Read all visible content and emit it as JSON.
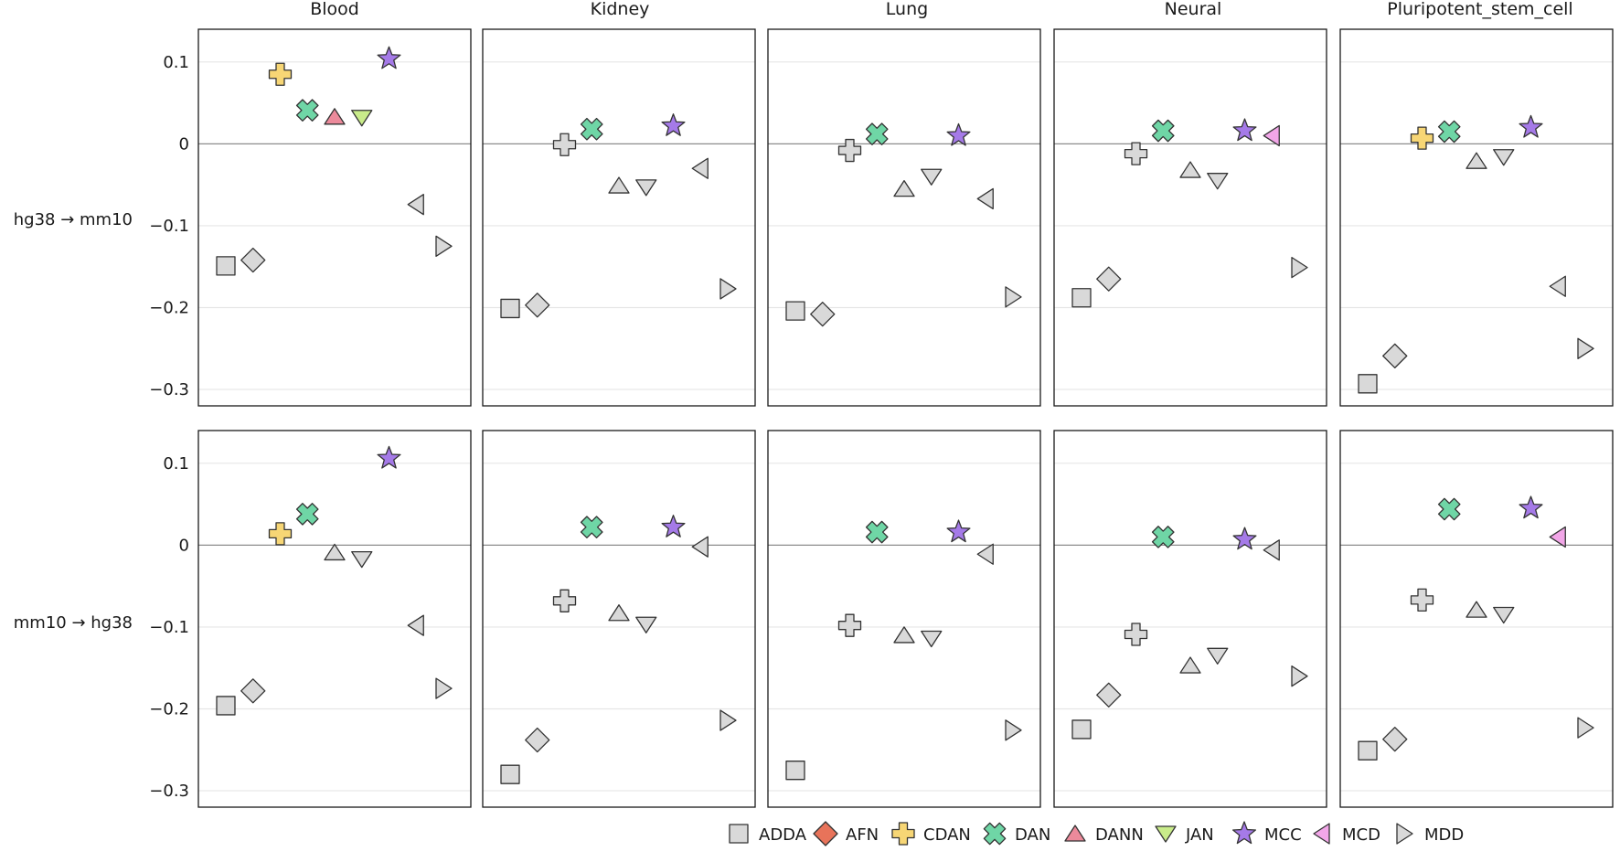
{
  "chart_data": {
    "type": "scatter",
    "title": "",
    "columns": [
      "Blood",
      "Kidney",
      "Lung",
      "Neural",
      "Pluripotent_stem_cell"
    ],
    "rows": [
      "hg38 → mm10",
      "mm10 → hg38"
    ],
    "methods": [
      "ADDA",
      "AFN",
      "CDAN",
      "DAN",
      "DANN",
      "JAN",
      "MCC",
      "MCD",
      "MDD"
    ],
    "ylim": [
      -0.32,
      0.14
    ],
    "yticks": [
      0.1,
      0,
      -0.1,
      -0.2,
      -0.3
    ],
    "ytick_labels": [
      "0.1",
      "0",
      "−0.1",
      "−0.2",
      "−0.3"
    ],
    "grid": true,
    "legend_position": "bottom-right",
    "colors": {
      "ADDA": "#d9d9d9",
      "AFN": "#e8735a",
      "CDAN": "#f7d675",
      "DAN": "#6fd6a6",
      "DANN": "#ec8a9b",
      "JAN": "#c9ec8a",
      "MCC": "#a57ae8",
      "MCD": "#f2a6e8",
      "MDD": "#d9d9d9",
      "inactive": "#d9d9d9"
    },
    "shapes": {
      "ADDA": "square",
      "AFN": "diamond",
      "CDAN": "cross",
      "DAN": "x",
      "DANN": "triangle-up",
      "JAN": "triangle-down",
      "MCC": "star",
      "MCD": "triangle-left",
      "MDD": "triangle-right"
    },
    "panels": [
      {
        "row": 0,
        "col": 0,
        "points": [
          {
            "method": "ADDA",
            "y": -0.149,
            "active": false
          },
          {
            "method": "AFN",
            "y": -0.142,
            "active": false
          },
          {
            "method": "CDAN",
            "y": 0.085,
            "active": true
          },
          {
            "method": "DAN",
            "y": 0.041,
            "active": true
          },
          {
            "method": "DANN",
            "y": 0.033,
            "active": true
          },
          {
            "method": "JAN",
            "y": 0.032,
            "active": true
          },
          {
            "method": "MCC",
            "y": 0.104,
            "active": true
          },
          {
            "method": "MCD",
            "y": -0.074,
            "active": false
          },
          {
            "method": "MDD",
            "y": -0.125,
            "active": false
          }
        ]
      },
      {
        "row": 0,
        "col": 1,
        "points": [
          {
            "method": "ADDA",
            "y": -0.201,
            "active": false
          },
          {
            "method": "AFN",
            "y": -0.197,
            "active": false
          },
          {
            "method": "CDAN",
            "y": -0.001,
            "active": false
          },
          {
            "method": "DAN",
            "y": 0.018,
            "active": true
          },
          {
            "method": "DANN",
            "y": -0.051,
            "active": false
          },
          {
            "method": "JAN",
            "y": -0.053,
            "active": false
          },
          {
            "method": "MCC",
            "y": 0.022,
            "active": true
          },
          {
            "method": "MCD",
            "y": -0.03,
            "active": false
          },
          {
            "method": "MDD",
            "y": -0.177,
            "active": false
          }
        ]
      },
      {
        "row": 0,
        "col": 2,
        "points": [
          {
            "method": "ADDA",
            "y": -0.204,
            "active": false
          },
          {
            "method": "AFN",
            "y": -0.208,
            "active": false
          },
          {
            "method": "CDAN",
            "y": -0.008,
            "active": false
          },
          {
            "method": "DAN",
            "y": 0.012,
            "active": true
          },
          {
            "method": "DANN",
            "y": -0.055,
            "active": false
          },
          {
            "method": "JAN",
            "y": -0.04,
            "active": false
          },
          {
            "method": "MCC",
            "y": 0.01,
            "active": true
          },
          {
            "method": "MCD",
            "y": -0.067,
            "active": false
          },
          {
            "method": "MDD",
            "y": -0.187,
            "active": false
          }
        ]
      },
      {
        "row": 0,
        "col": 3,
        "points": [
          {
            "method": "ADDA",
            "y": -0.188,
            "active": false
          },
          {
            "method": "AFN",
            "y": -0.165,
            "active": false
          },
          {
            "method": "CDAN",
            "y": -0.012,
            "active": false
          },
          {
            "method": "DAN",
            "y": 0.016,
            "active": true
          },
          {
            "method": "DANN",
            "y": -0.032,
            "active": false
          },
          {
            "method": "JAN",
            "y": -0.045,
            "active": false
          },
          {
            "method": "MCC",
            "y": 0.016,
            "active": true
          },
          {
            "method": "MCD",
            "y": 0.01,
            "active": true
          },
          {
            "method": "MDD",
            "y": -0.151,
            "active": false
          }
        ]
      },
      {
        "row": 0,
        "col": 4,
        "points": [
          {
            "method": "ADDA",
            "y": -0.293,
            "active": false
          },
          {
            "method": "AFN",
            "y": -0.259,
            "active": false
          },
          {
            "method": "CDAN",
            "y": 0.007,
            "active": true
          },
          {
            "method": "DAN",
            "y": 0.015,
            "active": true
          },
          {
            "method": "DANN",
            "y": -0.021,
            "active": false
          },
          {
            "method": "JAN",
            "y": -0.016,
            "active": false
          },
          {
            "method": "MCC",
            "y": 0.02,
            "active": true
          },
          {
            "method": "MCD",
            "y": -0.174,
            "active": false
          },
          {
            "method": "MDD",
            "y": -0.25,
            "active": false
          }
        ]
      },
      {
        "row": 1,
        "col": 0,
        "points": [
          {
            "method": "ADDA",
            "y": -0.196,
            "active": false
          },
          {
            "method": "AFN",
            "y": -0.178,
            "active": false
          },
          {
            "method": "CDAN",
            "y": 0.014,
            "active": true
          },
          {
            "method": "DAN",
            "y": 0.038,
            "active": true
          },
          {
            "method": "DANN",
            "y": -0.009,
            "active": false
          },
          {
            "method": "JAN",
            "y": -0.017,
            "active": false
          },
          {
            "method": "MCC",
            "y": 0.106,
            "active": true
          },
          {
            "method": "MCD",
            "y": -0.098,
            "active": false
          },
          {
            "method": "MDD",
            "y": -0.175,
            "active": false
          }
        ]
      },
      {
        "row": 1,
        "col": 1,
        "points": [
          {
            "method": "ADDA",
            "y": -0.28,
            "active": false
          },
          {
            "method": "AFN",
            "y": -0.238,
            "active": false
          },
          {
            "method": "CDAN",
            "y": -0.068,
            "active": false
          },
          {
            "method": "DAN",
            "y": 0.022,
            "active": true
          },
          {
            "method": "DANN",
            "y": -0.083,
            "active": false
          },
          {
            "method": "JAN",
            "y": -0.097,
            "active": false
          },
          {
            "method": "MCC",
            "y": 0.022,
            "active": true
          },
          {
            "method": "MCD",
            "y": -0.002,
            "active": false
          },
          {
            "method": "MDD",
            "y": -0.214,
            "active": false
          }
        ]
      },
      {
        "row": 1,
        "col": 2,
        "points": [
          {
            "method": "ADDA",
            "y": -0.275,
            "active": false
          },
          {
            "method": "AFN",
            "y": null,
            "active": false
          },
          {
            "method": "CDAN",
            "y": -0.098,
            "active": false
          },
          {
            "method": "DAN",
            "y": 0.016,
            "active": true
          },
          {
            "method": "DANN",
            "y": -0.11,
            "active": false
          },
          {
            "method": "JAN",
            "y": -0.114,
            "active": false
          },
          {
            "method": "MCC",
            "y": 0.016,
            "active": true
          },
          {
            "method": "MCD",
            "y": -0.011,
            "active": false
          },
          {
            "method": "MDD",
            "y": -0.226,
            "active": false
          }
        ]
      },
      {
        "row": 1,
        "col": 3,
        "points": [
          {
            "method": "ADDA",
            "y": -0.225,
            "active": false
          },
          {
            "method": "AFN",
            "y": -0.183,
            "active": false
          },
          {
            "method": "CDAN",
            "y": -0.109,
            "active": false
          },
          {
            "method": "DAN",
            "y": 0.01,
            "active": true
          },
          {
            "method": "DANN",
            "y": -0.147,
            "active": false
          },
          {
            "method": "JAN",
            "y": -0.135,
            "active": false
          },
          {
            "method": "MCC",
            "y": 0.007,
            "active": true
          },
          {
            "method": "MCD",
            "y": -0.006,
            "active": false
          },
          {
            "method": "MDD",
            "y": -0.16,
            "active": false
          }
        ]
      },
      {
        "row": 1,
        "col": 4,
        "points": [
          {
            "method": "ADDA",
            "y": -0.251,
            "active": false
          },
          {
            "method": "AFN",
            "y": -0.237,
            "active": false
          },
          {
            "method": "CDAN",
            "y": -0.067,
            "active": false
          },
          {
            "method": "DAN",
            "y": 0.044,
            "active": true
          },
          {
            "method": "DANN",
            "y": -0.079,
            "active": false
          },
          {
            "method": "JAN",
            "y": -0.085,
            "active": false
          },
          {
            "method": "MCC",
            "y": 0.045,
            "active": true
          },
          {
            "method": "MCD",
            "y": 0.01,
            "active": true
          },
          {
            "method": "MDD",
            "y": -0.223,
            "active": false
          }
        ]
      }
    ]
  }
}
